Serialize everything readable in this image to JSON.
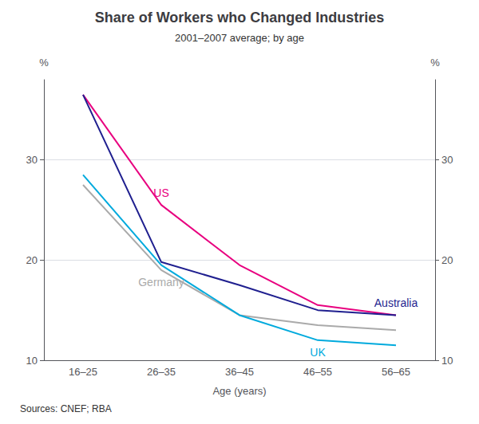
{
  "chart_data": {
    "type": "line",
    "title": "Share of Workers who Changed Industries",
    "subtitle": "2001–2007 average; by age",
    "xlabel": "Age (years)",
    "ylabel": "%",
    "y2label": "%",
    "source": "Sources: CNEF; RBA",
    "categories": [
      "16–25",
      "26–35",
      "36–45",
      "46–55",
      "56–65"
    ],
    "series": [
      {
        "name": "US",
        "color": "#e8007f",
        "values": [
          36.5,
          25.5,
          19.5,
          15.5,
          14.5
        ]
      },
      {
        "name": "Australia",
        "color": "#1f1f8f",
        "values": [
          36.5,
          19.8,
          17.5,
          15.0,
          14.5
        ]
      },
      {
        "name": "Germany",
        "color": "#aaaaaa",
        "values": [
          27.5,
          19.0,
          14.5,
          13.5,
          13.0
        ]
      },
      {
        "name": "UK",
        "color": "#00aadd",
        "values": [
          28.5,
          19.5,
          14.5,
          12.0,
          11.5
        ]
      }
    ],
    "ylim": [
      10,
      38
    ],
    "yticks": [
      10,
      20,
      30
    ],
    "y2lim": [
      10,
      38
    ],
    "y2ticks": [
      10,
      20,
      30
    ],
    "grid": true
  }
}
